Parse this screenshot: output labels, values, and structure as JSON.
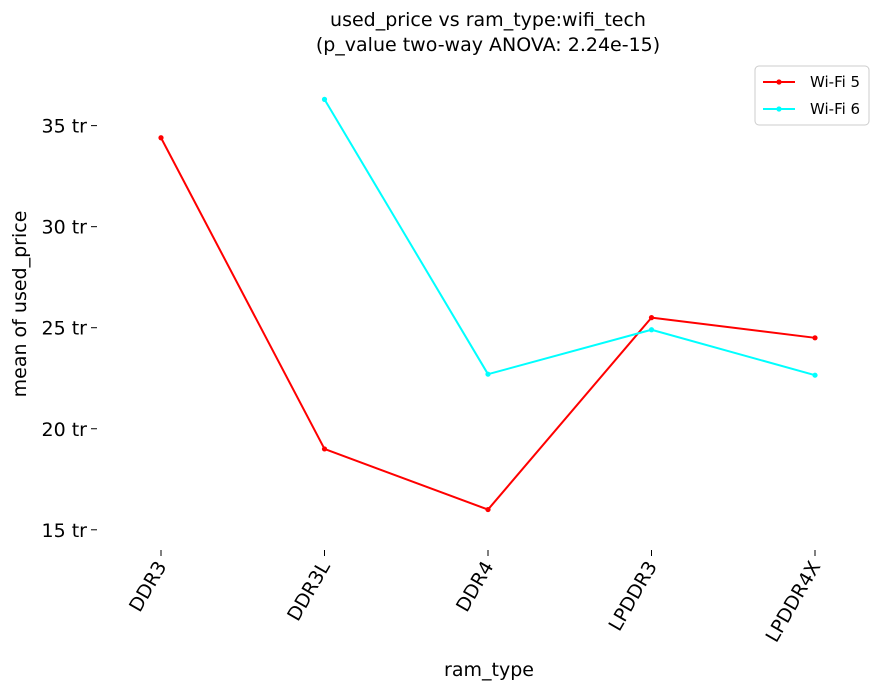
{
  "chart_data": {
    "type": "line",
    "title": [
      "used_price vs ram_type:wifi_tech",
      "(p_value two-way ANOVA: 2.24e-15)"
    ],
    "xlabel": "ram_type",
    "ylabel": "mean of used_price",
    "categories": [
      "DDR3",
      "DDR3L",
      "DDR4",
      "LPDDR3",
      "LPDDR4X"
    ],
    "ylim": [
      14,
      38
    ],
    "yticks": [
      15,
      20,
      25,
      30,
      35
    ],
    "ytick_labels": [
      "15 tr",
      "20 tr",
      "25 tr",
      "30 tr",
      "35 tr"
    ],
    "grid": false,
    "legend_position": "top-right",
    "series": [
      {
        "name": "Wi-Fi 5",
        "color": "#ff0000",
        "values": [
          34.4,
          19.0,
          16.0,
          25.5,
          24.5
        ]
      },
      {
        "name": "Wi-Fi 6",
        "color": "#00ffff",
        "values": [
          null,
          36.3,
          22.7,
          24.9,
          22.65
        ]
      }
    ]
  }
}
